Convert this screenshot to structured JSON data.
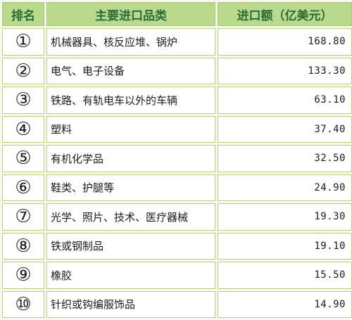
{
  "table": {
    "headers": {
      "rank": "排名",
      "category": "主要进口品类",
      "value": "进口额（亿美元）"
    },
    "rows": [
      {
        "rank": "①",
        "category": "机械器具、核反应堆、锅炉",
        "value": "168.80"
      },
      {
        "rank": "②",
        "category": "电气、电子设备",
        "value": "133.30"
      },
      {
        "rank": "③",
        "category": "铁路、有轨电车以外的车辆",
        "value": "63.10"
      },
      {
        "rank": "④",
        "category": "塑料",
        "value": "37.40"
      },
      {
        "rank": "⑤",
        "category": "有机化学品",
        "value": "32.50"
      },
      {
        "rank": "⑥",
        "category": "鞋类、护腿等",
        "value": "24.90"
      },
      {
        "rank": "⑦",
        "category": "光学、照片、技术、医疗器械",
        "value": "19.30"
      },
      {
        "rank": "⑧",
        "category": "铁或钢制品",
        "value": "19.10"
      },
      {
        "rank": "⑨",
        "category": "橡胶",
        "value": "15.50"
      },
      {
        "rank": "⑩",
        "category": "针织或钩编服饰品",
        "value": "14.90"
      }
    ]
  },
  "colors": {
    "header_bg": "#b9d98d",
    "header_text": "#2a6b37",
    "border": "#b3d07a",
    "page_bg": "#f7f9ef"
  }
}
